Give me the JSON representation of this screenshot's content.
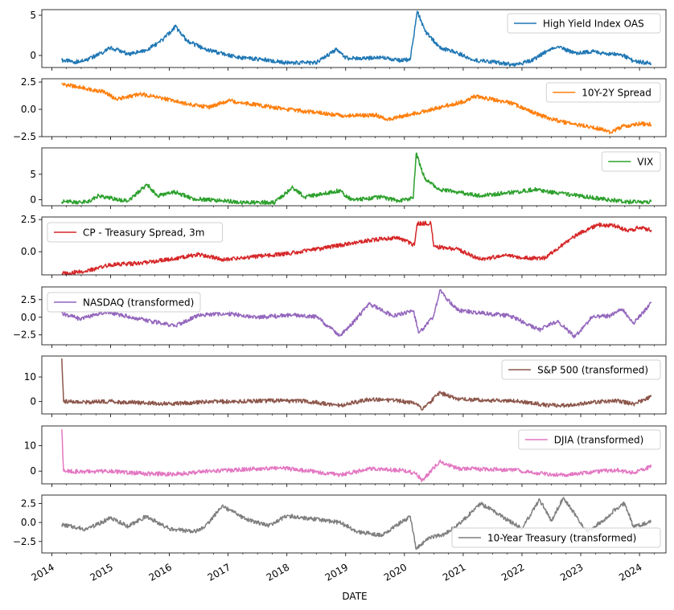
{
  "figure": {
    "xlabel": "DATE"
  },
  "chart_data": [
    {
      "type": "line",
      "series": [
        {
          "name": "High Yield Index OAS",
          "color": "#1f77b4"
        }
      ],
      "ylim": [
        -1.5,
        5.7
      ],
      "yticks": [
        0,
        5
      ],
      "legend": "top-right",
      "x": [
        2014.17,
        2014.4,
        2014.6,
        2014.85,
        2015.0,
        2015.3,
        2015.6,
        2015.9,
        2016.1,
        2016.3,
        2016.6,
        2016.9,
        2017.2,
        2017.6,
        2018.0,
        2018.5,
        2018.85,
        2019.0,
        2019.3,
        2019.6,
        2019.9,
        2020.1,
        2020.22,
        2020.35,
        2020.6,
        2020.9,
        2021.2,
        2021.6,
        2021.9,
        2022.2,
        2022.45,
        2022.6,
        2022.9,
        2023.2,
        2023.4,
        2023.7,
        2023.9,
        2024.1,
        2024.2
      ],
      "values": [
        -0.6,
        -0.8,
        -0.5,
        0.3,
        1.0,
        0.2,
        0.6,
        2.0,
        3.6,
        1.8,
        0.8,
        0.2,
        -0.3,
        -0.5,
        -0.9,
        -0.9,
        0.8,
        -0.3,
        -0.4,
        -0.2,
        -0.6,
        -0.5,
        5.5,
        3.0,
        1.0,
        0.3,
        -0.6,
        -0.9,
        -1.2,
        -0.5,
        0.7,
        1.1,
        0.3,
        0.5,
        0.2,
        0.1,
        -0.7,
        -0.9,
        -1.0
      ]
    },
    {
      "type": "line",
      "series": [
        {
          "name": "10Y-2Y Spread",
          "color": "#ff7f0e"
        }
      ],
      "ylim": [
        -2.5,
        2.8
      ],
      "yticks": [
        -2.5,
        0.0,
        2.5
      ],
      "legend": "top-right",
      "x": [
        2014.17,
        2014.5,
        2014.9,
        2015.1,
        2015.5,
        2015.9,
        2016.3,
        2016.7,
        2017.0,
        2017.5,
        2018.0,
        2018.5,
        2019.0,
        2019.5,
        2019.7,
        2020.0,
        2020.3,
        2020.7,
        2021.0,
        2021.2,
        2021.5,
        2021.8,
        2022.2,
        2022.5,
        2022.9,
        2023.2,
        2023.5,
        2023.7,
        2024.0,
        2024.2
      ],
      "values": [
        2.3,
        2.0,
        1.6,
        0.9,
        1.4,
        1.0,
        0.5,
        0.2,
        0.8,
        0.4,
        0.0,
        -0.3,
        -0.6,
        -0.5,
        -0.9,
        -0.6,
        -0.2,
        0.3,
        0.7,
        1.2,
        0.9,
        0.6,
        -0.3,
        -0.9,
        -1.4,
        -1.6,
        -2.1,
        -1.6,
        -1.3,
        -1.4
      ]
    },
    {
      "type": "line",
      "series": [
        {
          "name": "VIX",
          "color": "#2ca02c"
        }
      ],
      "ylim": [
        -1.2,
        10.2
      ],
      "yticks": [
        0,
        5
      ],
      "legend": "top-right",
      "x": [
        2014.17,
        2014.6,
        2014.8,
        2015.0,
        2015.3,
        2015.62,
        2015.8,
        2016.1,
        2016.4,
        2016.9,
        2017.3,
        2017.8,
        2018.1,
        2018.3,
        2018.9,
        2019.1,
        2019.6,
        2019.9,
        2020.15,
        2020.2,
        2020.35,
        2020.6,
        2020.9,
        2021.3,
        2021.9,
        2022.2,
        2022.6,
        2023.0,
        2023.4,
        2023.8,
        2024.2
      ],
      "values": [
        -0.4,
        -0.5,
        0.8,
        0.3,
        -0.3,
        3.0,
        0.8,
        1.5,
        0.2,
        -0.2,
        -0.6,
        -0.5,
        2.4,
        0.5,
        1.8,
        -0.1,
        0.5,
        -0.2,
        0.3,
        9.1,
        4.0,
        2.0,
        1.5,
        0.8,
        1.5,
        2.0,
        1.3,
        0.7,
        0.1,
        -0.4,
        -0.4
      ]
    },
    {
      "type": "line",
      "series": [
        {
          "name": "CP - Treasury Spread, 3m",
          "color": "#d62728"
        }
      ],
      "ylim": [
        -1.8,
        2.7
      ],
      "yticks": [
        0.0,
        2.5
      ],
      "legend": "top-left",
      "x": [
        2014.17,
        2014.6,
        2015.0,
        2015.5,
        2016.0,
        2016.5,
        2016.9,
        2017.4,
        2017.9,
        2018.4,
        2018.9,
        2019.4,
        2019.9,
        2020.17,
        2020.22,
        2020.45,
        2020.5,
        2020.9,
        2021.3,
        2021.7,
        2022.1,
        2022.4,
        2022.7,
        2023.0,
        2023.3,
        2023.6,
        2023.8,
        2024.0,
        2024.2
      ],
      "values": [
        -1.7,
        -1.5,
        -1.0,
        -0.9,
        -0.6,
        -0.2,
        -0.6,
        -0.4,
        -0.2,
        0.1,
        0.5,
        0.9,
        1.1,
        0.5,
        2.2,
        2.2,
        0.4,
        0.2,
        -0.6,
        -0.3,
        -0.5,
        -0.5,
        0.6,
        1.5,
        2.1,
        2.0,
        1.6,
        1.9,
        1.7
      ]
    },
    {
      "type": "line",
      "series": [
        {
          "name": "NASDAQ (transformed)",
          "color": "#9467bd"
        }
      ],
      "ylim": [
        -3.9,
        4.3
      ],
      "yticks": [
        -2.5,
        0.0,
        2.5
      ],
      "legend": "top-left",
      "x": [
        2014.17,
        2014.5,
        2014.9,
        2015.3,
        2015.7,
        2016.1,
        2016.5,
        2017.0,
        2017.5,
        2018.1,
        2018.5,
        2018.9,
        2019.1,
        2019.4,
        2019.8,
        2020.15,
        2020.25,
        2020.5,
        2020.6,
        2020.9,
        2021.3,
        2021.8,
        2022.3,
        2022.6,
        2022.9,
        2023.2,
        2023.5,
        2023.7,
        2023.9,
        2024.2
      ],
      "values": [
        0.6,
        -0.3,
        0.8,
        0.1,
        -0.6,
        -1.2,
        0.3,
        0.5,
        0.0,
        0.3,
        0.1,
        -2.6,
        -1.0,
        1.9,
        0.2,
        0.9,
        -2.2,
        0.2,
        3.8,
        1.0,
        0.6,
        0.2,
        -1.8,
        -0.5,
        -2.8,
        0.1,
        0.2,
        1.2,
        -0.8,
        2.0
      ]
    },
    {
      "type": "line",
      "series": [
        {
          "name": "S&P 500 (transformed)",
          "color": "#8c564b"
        }
      ],
      "ylim": [
        -5,
        18.5
      ],
      "yticks": [
        0,
        10
      ],
      "legend": "top-right",
      "x": [
        2014.17,
        2014.2,
        2014.5,
        2015.0,
        2015.6,
        2016.1,
        2016.6,
        2017.2,
        2017.8,
        2018.3,
        2018.9,
        2019.4,
        2019.9,
        2020.2,
        2020.3,
        2020.6,
        2020.9,
        2021.4,
        2021.9,
        2022.4,
        2022.8,
        2023.2,
        2023.6,
        2023.9,
        2024.2
      ],
      "values": [
        17.5,
        0.0,
        -0.2,
        0.0,
        -0.6,
        -0.8,
        -0.1,
        0.1,
        0.4,
        0.2,
        -1.6,
        0.9,
        0.3,
        -0.6,
        -3.3,
        3.6,
        1.0,
        0.5,
        0.3,
        -1.4,
        -1.6,
        -0.3,
        0.4,
        -1.0,
        2.0
      ]
    },
    {
      "type": "line",
      "series": [
        {
          "name": "DJIA (transformed)",
          "color": "#e377c2"
        }
      ],
      "ylim": [
        -5,
        17.8
      ],
      "yticks": [
        0,
        10
      ],
      "legend": "top-right",
      "x": [
        2014.17,
        2014.2,
        2014.5,
        2015.0,
        2015.6,
        2016.1,
        2016.6,
        2017.2,
        2017.9,
        2018.3,
        2018.9,
        2019.4,
        2019.9,
        2020.2,
        2020.3,
        2020.6,
        2020.9,
        2021.4,
        2021.9,
        2022.4,
        2022.8,
        2023.2,
        2023.6,
        2023.9,
        2024.2
      ],
      "values": [
        16.5,
        0.0,
        -0.2,
        0.0,
        -1.0,
        -1.2,
        -0.2,
        0.6,
        1.2,
        0.3,
        -1.5,
        0.9,
        0.4,
        -0.8,
        -3.8,
        3.8,
        1.0,
        0.7,
        0.4,
        -1.2,
        -1.4,
        -0.3,
        0.4,
        -0.6,
        1.8
      ]
    },
    {
      "type": "line",
      "series": [
        {
          "name": "10-Year Treasury (transformed)",
          "color": "#7f7f7f"
        }
      ],
      "ylim": [
        -4.0,
        3.6
      ],
      "yticks": [
        -2.5,
        0.0,
        2.5
      ],
      "legend": "bottom-right",
      "x": [
        2014.17,
        2014.6,
        2015.0,
        2015.3,
        2015.6,
        2016.0,
        2016.4,
        2016.6,
        2016.9,
        2017.3,
        2017.7,
        2018.0,
        2018.4,
        2018.9,
        2019.2,
        2019.6,
        2019.9,
        2020.1,
        2020.2,
        2020.4,
        2020.7,
        2021.0,
        2021.3,
        2021.7,
        2022.0,
        2022.3,
        2022.5,
        2022.7,
        2022.8,
        2023.1,
        2023.4,
        2023.6,
        2023.75,
        2023.9,
        2024.2
      ],
      "values": [
        -0.3,
        -0.9,
        0.6,
        -0.5,
        0.8,
        -0.8,
        -1.2,
        -0.7,
        2.2,
        0.4,
        -0.4,
        0.9,
        0.5,
        0.0,
        -1.2,
        -1.7,
        -0.2,
        0.8,
        -3.5,
        -2.0,
        -1.5,
        0.3,
        2.5,
        0.6,
        -0.8,
        3.0,
        0.2,
        3.2,
        2.2,
        -1.2,
        0.4,
        1.8,
        2.5,
        -0.6,
        0.1
      ]
    }
  ],
  "xaxis": {
    "range": [
      2013.83,
      2024.45
    ],
    "ticks": [
      {
        "value": 2014,
        "label": "2014"
      },
      {
        "value": 2015,
        "label": "2015"
      },
      {
        "value": 2016,
        "label": "2016"
      },
      {
        "value": 2017,
        "label": "2017"
      },
      {
        "value": 2018,
        "label": "2018"
      },
      {
        "value": 2019,
        "label": "2019"
      },
      {
        "value": 2020,
        "label": "2020"
      },
      {
        "value": 2021,
        "label": "2021"
      },
      {
        "value": 2022,
        "label": "2022"
      },
      {
        "value": 2023,
        "label": "2023"
      },
      {
        "value": 2024,
        "label": "2024"
      }
    ]
  }
}
